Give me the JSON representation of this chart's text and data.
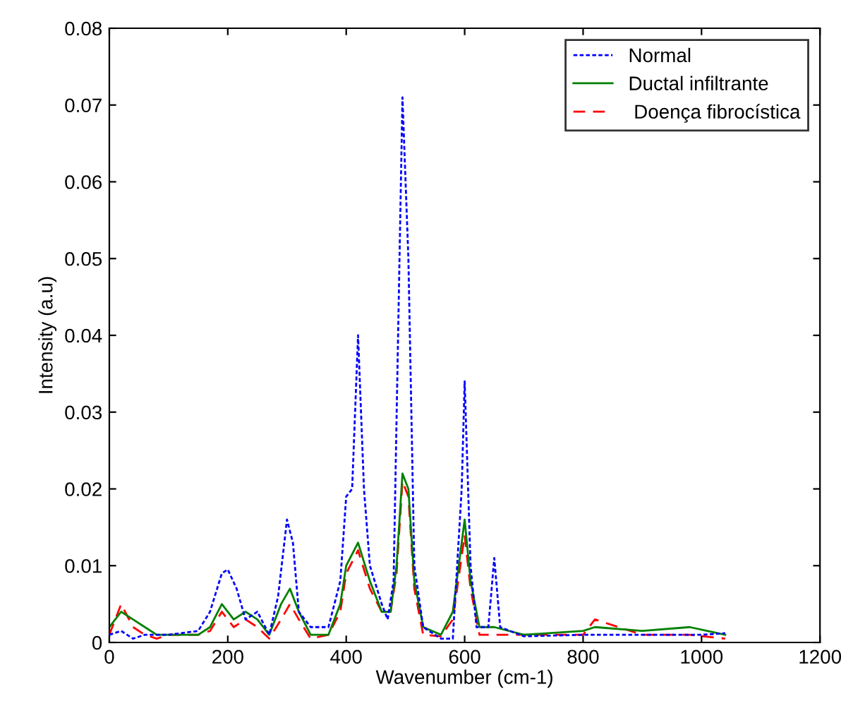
{
  "chart_data": {
    "type": "line",
    "xlabel": "Wavenumber (cm-1)",
    "ylabel": "Intensity (a.u)",
    "xlim": [
      0,
      1200
    ],
    "ylim": [
      0,
      0.08
    ],
    "xticks": [
      0,
      200,
      400,
      600,
      800,
      1000,
      1200
    ],
    "yticks": [
      0,
      0.01,
      0.02,
      0.03,
      0.04,
      0.05,
      0.06,
      0.07,
      0.08
    ],
    "grid": false,
    "legend": "top right",
    "series": [
      {
        "name": "Normal",
        "color": "#0000ff",
        "line_style": "dotted",
        "x": [
          0,
          20,
          40,
          60,
          100,
          150,
          170,
          190,
          200,
          215,
          230,
          250,
          270,
          285,
          300,
          310,
          320,
          340,
          370,
          390,
          400,
          410,
          420,
          430,
          440,
          460,
          470,
          480,
          490,
          495,
          505,
          515,
          530,
          560,
          580,
          595,
          600,
          610,
          620,
          640,
          650,
          660,
          700,
          800,
          900,
          1000,
          1040
        ],
        "values": [
          0.001,
          0.0015,
          0.0005,
          0.001,
          0.001,
          0.0015,
          0.004,
          0.009,
          0.0095,
          0.007,
          0.003,
          0.004,
          0.001,
          0.006,
          0.016,
          0.013,
          0.004,
          0.002,
          0.002,
          0.008,
          0.019,
          0.02,
          0.04,
          0.02,
          0.01,
          0.005,
          0.003,
          0.008,
          0.05,
          0.071,
          0.05,
          0.01,
          0.002,
          0.0005,
          0.0005,
          0.02,
          0.034,
          0.01,
          0.002,
          0.002,
          0.011,
          0.002,
          0.0008,
          0.001,
          0.001,
          0.001,
          0.0012
        ]
      },
      {
        "name": "Ductal infiltrante",
        "color": "#008000",
        "line_style": "solid",
        "x": [
          0,
          20,
          40,
          60,
          80,
          100,
          150,
          170,
          190,
          210,
          230,
          250,
          270,
          290,
          305,
          320,
          340,
          370,
          390,
          400,
          420,
          440,
          460,
          475,
          485,
          495,
          505,
          515,
          530,
          560,
          580,
          600,
          610,
          625,
          650,
          700,
          800,
          820,
          900,
          980,
          1040
        ],
        "values": [
          0.002,
          0.004,
          0.003,
          0.002,
          0.001,
          0.001,
          0.001,
          0.002,
          0.005,
          0.003,
          0.004,
          0.003,
          0.001,
          0.005,
          0.007,
          0.004,
          0.001,
          0.001,
          0.005,
          0.01,
          0.013,
          0.008,
          0.004,
          0.004,
          0.01,
          0.022,
          0.02,
          0.008,
          0.002,
          0.001,
          0.004,
          0.016,
          0.008,
          0.002,
          0.002,
          0.001,
          0.0015,
          0.002,
          0.0015,
          0.002,
          0.001
        ]
      },
      {
        "name": " Doença fibrocística",
        "color": "#ff0000",
        "line_style": "dashed",
        "x": [
          0,
          20,
          40,
          60,
          80,
          100,
          150,
          170,
          190,
          210,
          230,
          250,
          270,
          290,
          305,
          320,
          340,
          370,
          390,
          400,
          420,
          440,
          460,
          475,
          485,
          495,
          505,
          515,
          530,
          560,
          580,
          600,
          610,
          625,
          650,
          700,
          800,
          820,
          900,
          980,
          1040
        ],
        "values": [
          0.001,
          0.005,
          0.002,
          0.001,
          0.0005,
          0.001,
          0.001,
          0.0015,
          0.004,
          0.002,
          0.003,
          0.002,
          0.0005,
          0.003,
          0.005,
          0.003,
          0.0005,
          0.001,
          0.004,
          0.009,
          0.012,
          0.007,
          0.004,
          0.004,
          0.009,
          0.021,
          0.019,
          0.007,
          0.001,
          0.0008,
          0.003,
          0.014,
          0.007,
          0.001,
          0.001,
          0.001,
          0.001,
          0.003,
          0.001,
          0.001,
          0.0005
        ]
      }
    ]
  }
}
